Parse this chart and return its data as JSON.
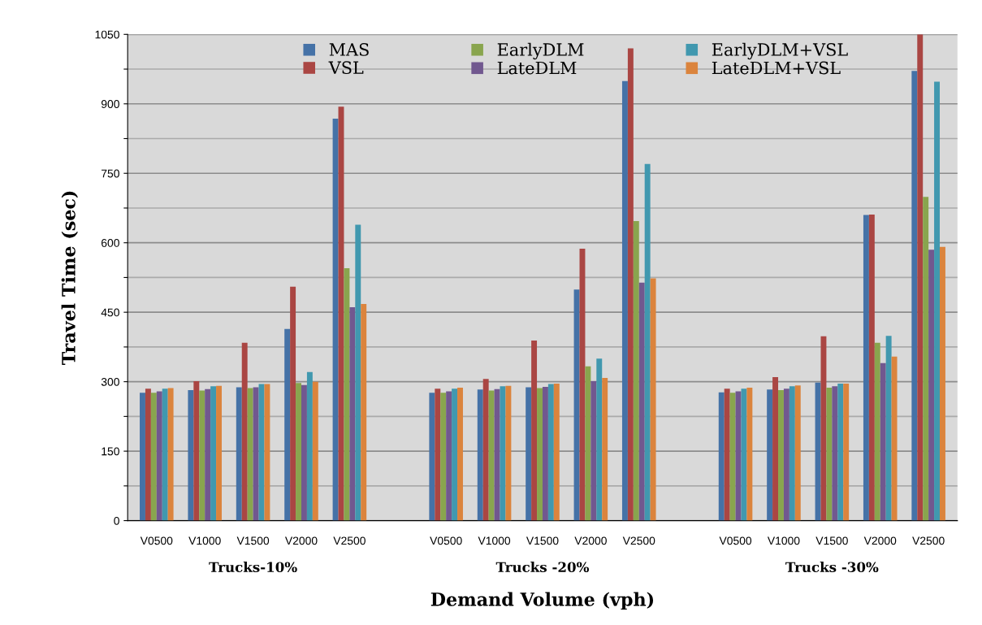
{
  "chart_data": {
    "type": "bar",
    "xlabel": "Demand Volume (vph)",
    "ylabel": "Travel Time (sec)",
    "categories": [
      "V0500",
      "V1000",
      "V1500",
      "V2000",
      "V2500",
      null,
      "V0500",
      "V1000",
      "V1500",
      "V2000",
      "V2500",
      null,
      "V0500",
      "V1000",
      "V1500",
      "V2000",
      "V2500"
    ],
    "annotations": [
      "Trucks-10%",
      "Trucks -20%",
      "Trucks -30%"
    ],
    "series": [
      {
        "name": "MAS",
        "color": "#4572a7",
        "values": [
          276,
          282,
          288,
          414,
          868,
          null,
          276,
          283,
          288,
          499,
          949,
          null,
          277,
          283,
          298,
          660,
          971
        ]
      },
      {
        "name": "VSL",
        "color": "#aa4643",
        "values": [
          285,
          301,
          384,
          505,
          894,
          null,
          285,
          306,
          389,
          587,
          1020,
          null,
          285,
          310,
          398,
          661,
          1050
        ]
      },
      {
        "name": "EarlyDLM",
        "color": "#89a54e",
        "values": [
          276,
          281,
          286,
          297,
          545,
          null,
          276,
          281,
          286,
          333,
          647,
          null,
          276,
          282,
          287,
          384,
          699
        ]
      },
      {
        "name": "LateDLM",
        "color": "#71588f",
        "values": [
          279,
          284,
          288,
          293,
          461,
          null,
          279,
          284,
          289,
          301,
          514,
          null,
          279,
          285,
          290,
          340,
          585
        ]
      },
      {
        "name": "EarlyDLM+VSL",
        "color": "#4198af",
        "values": [
          285,
          290,
          295,
          321,
          639,
          null,
          285,
          290,
          295,
          350,
          770,
          null,
          285,
          290,
          296,
          399,
          948
        ]
      },
      {
        "name": "LateDLM+VSL",
        "color": "#db843d",
        "values": [
          286,
          291,
          295,
          300,
          468,
          null,
          287,
          291,
          296,
          308,
          523,
          null,
          287,
          292,
          296,
          354,
          591
        ]
      }
    ],
    "ylim": [
      0,
      1050
    ],
    "yticks": [
      0,
      {
        "value": 75,
        "label": null
      },
      150,
      {
        "value": 225,
        "label": null
      },
      300,
      {
        "value": 375,
        "label": null
      },
      450,
      {
        "value": 525,
        "label": null
      },
      600,
      {
        "value": 675,
        "label": null
      },
      750,
      {
        "value": 825,
        "label": null
      },
      900,
      {
        "value": 975,
        "label": null
      },
      1050
    ],
    "grid": "y",
    "legend": "top"
  }
}
